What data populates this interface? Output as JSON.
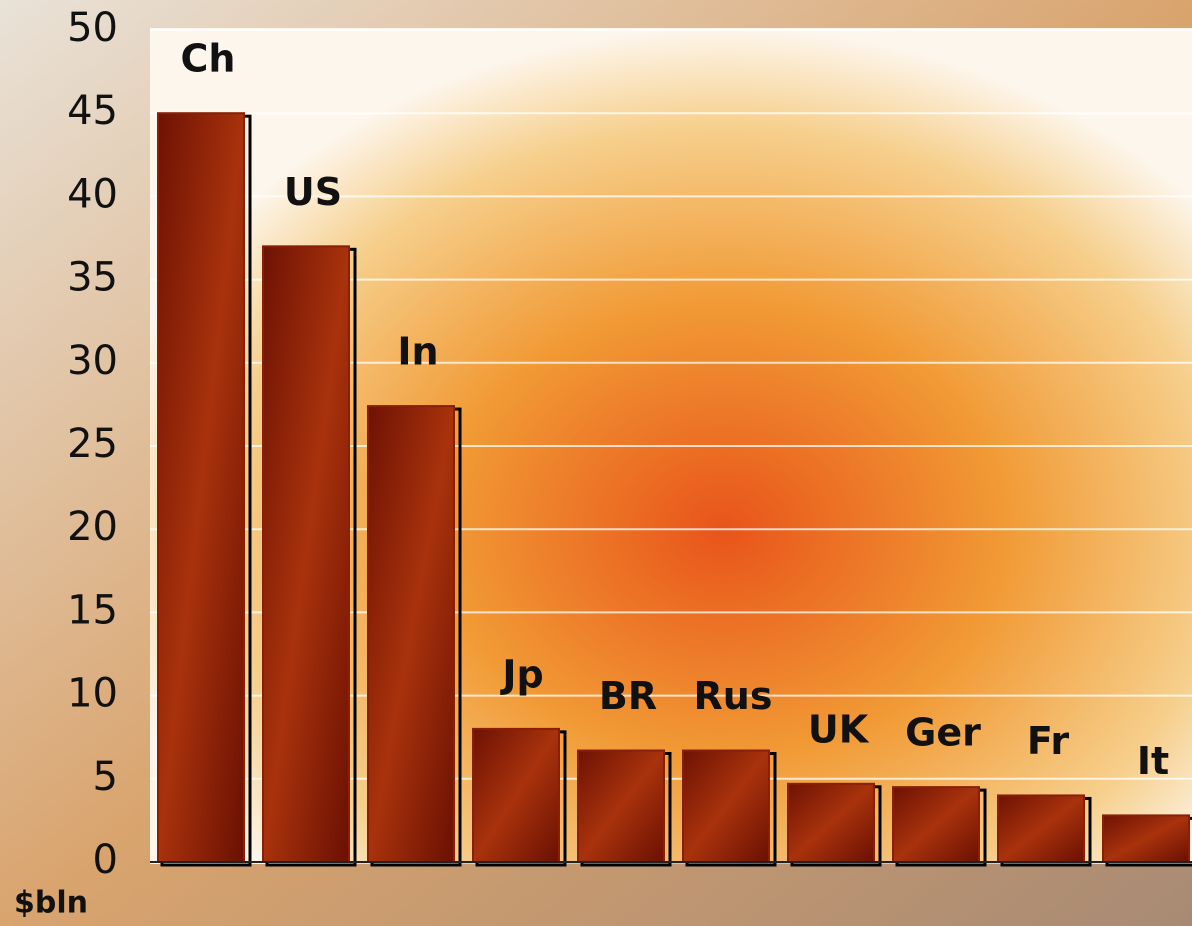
{
  "chart_data": {
    "type": "bar",
    "y_label": "$bln",
    "categories": [
      "Ch",
      "US",
      "In",
      "Jp",
      "BR",
      "Rus",
      "UK",
      "Ger",
      "Fr",
      "It"
    ],
    "values": [
      45,
      37,
      27.4,
      8,
      6.7,
      6.7,
      4.7,
      4.5,
      4,
      2.8
    ],
    "ylim": [
      0,
      50
    ],
    "yticks": [
      0,
      5,
      10,
      15,
      20,
      25,
      30,
      35,
      40,
      45,
      50
    ],
    "grid": true,
    "color": "#8a1f06"
  }
}
